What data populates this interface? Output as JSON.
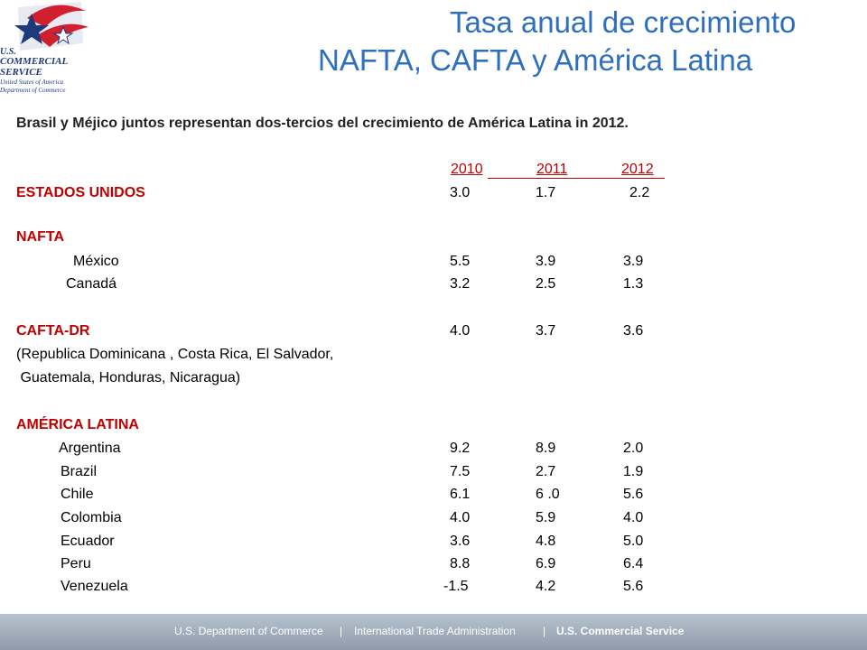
{
  "logo": {
    "line1": "U.S.",
    "line2": "COMMERCIAL",
    "line3": "SERVICE",
    "line4": "United States of America",
    "line5": "Department of Commerce"
  },
  "title": {
    "line1": "Tasa anual de crecimiento",
    "line2": "NAFTA, CAFTA y América Latina"
  },
  "intro": "Brasil y Méjico juntos representan dos-tercios del crecimiento de América Latina in 2012.",
  "years": [
    "2010",
    "2011",
    "2012"
  ],
  "rows": [
    {
      "label": "ESTADOS UNIDOS",
      "v": [
        "3.0",
        "1.7",
        "2.2"
      ]
    },
    {
      "label": "NAFTA"
    },
    {
      "label": "México",
      "v": [
        "5.5",
        "3.9",
        "3.9"
      ]
    },
    {
      "label": "Canadá",
      "v": [
        "3.2",
        "2.5",
        "1.3"
      ]
    },
    {
      "label": "CAFTA-DR",
      "v": [
        "4.0",
        "3.7",
        "3.6"
      ]
    },
    {
      "label": "AMÉRICA LATINA"
    },
    {
      "label": "Argentina",
      "v": [
        "9.2",
        "8.9",
        "2.0"
      ]
    },
    {
      "label": "Brazil",
      "v": [
        "7.5",
        "2.7",
        "1.9"
      ]
    },
    {
      "label": "Chile",
      "v": [
        "6.1",
        "6 .0",
        "5.6"
      ]
    },
    {
      "label": "Colombia",
      "v": [
        "4.0",
        "5.9",
        "4.0"
      ]
    },
    {
      "label": "Ecuador",
      "v": [
        "3.6",
        "4.8",
        "5.0"
      ]
    },
    {
      "label": "Peru",
      "v": [
        "8.8",
        "6.9",
        "6.4"
      ]
    },
    {
      "label": "Venezuela",
      "v": [
        "-1.5",
        "4.2",
        "5.6"
      ]
    }
  ],
  "cafta_note": {
    "line1": "(Republica Dominicana , Costa Rica, El Salvador,",
    "line2": " Guatemala, Honduras, Nicaragua)"
  },
  "footer": {
    "item1": "U.S. Department of Commerce",
    "sep": "|",
    "item2": "International Trade Administration",
    "item3": "U.S. Commercial Service"
  }
}
